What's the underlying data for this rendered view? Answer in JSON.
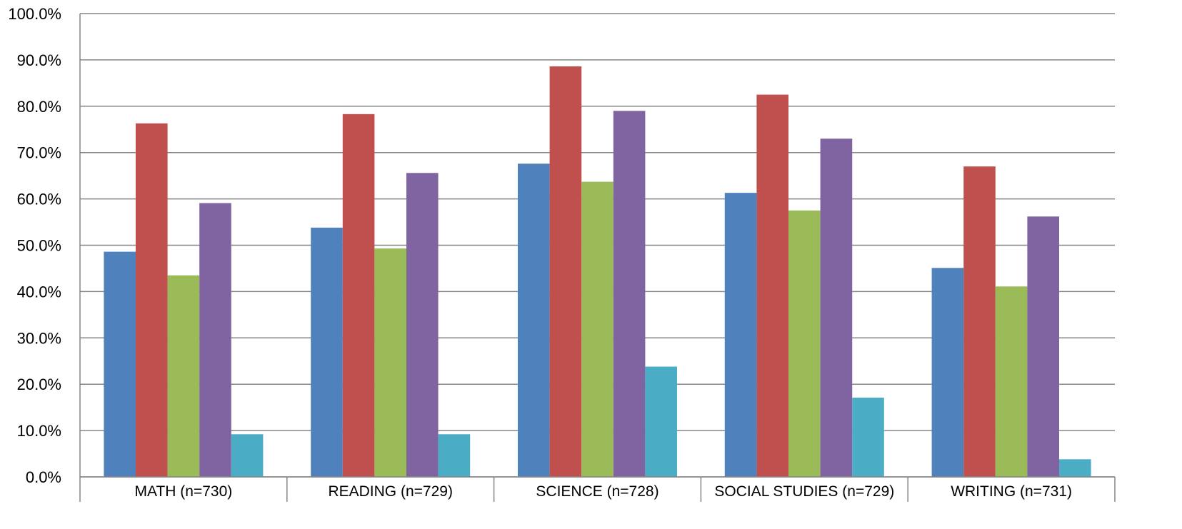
{
  "chart_data": {
    "type": "bar",
    "title": "",
    "xlabel": "",
    "ylabel": "",
    "ylim": [
      0,
      100
    ],
    "ytick_step": 10,
    "ytick_format": "percent_1dp",
    "grid": true,
    "legend": "none",
    "categories": [
      "MATH (n=730)",
      "READING (n=729)",
      "SCIENCE (n=728)",
      "SOCIAL STUDIES (n=729)",
      "WRITING (n=731)"
    ],
    "series": [
      {
        "color": "#4F81BD",
        "values": [
          48.6,
          53.8,
          67.6,
          61.3,
          45.1
        ]
      },
      {
        "color": "#C0504D",
        "values": [
          76.3,
          78.3,
          88.6,
          82.5,
          67.0
        ]
      },
      {
        "color": "#9BBB59",
        "values": [
          43.5,
          49.3,
          63.7,
          57.5,
          41.1
        ]
      },
      {
        "color": "#8064A2",
        "values": [
          59.1,
          65.6,
          79.0,
          73.0,
          56.2
        ]
      },
      {
        "color": "#4BACC6",
        "values": [
          9.2,
          9.2,
          23.8,
          17.1,
          3.8
        ]
      }
    ]
  }
}
